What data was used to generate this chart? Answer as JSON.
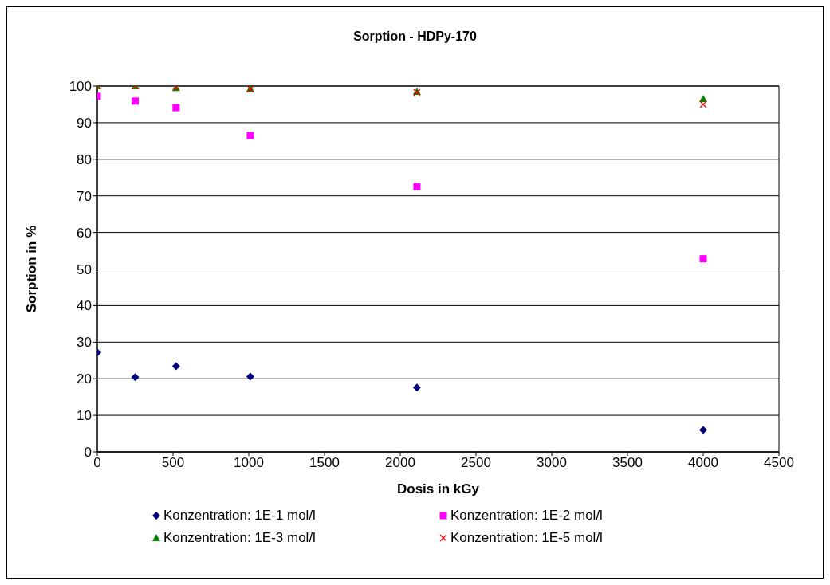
{
  "chart_data": {
    "type": "scatter",
    "title": "Sorption - HDPy-170",
    "xlabel": "Dosis in kGy",
    "ylabel": "Sorption in %",
    "x": [
      0,
      250,
      520,
      1010,
      2110,
      4000
    ],
    "series": [
      {
        "name": "Konzentration: 1E-1 mol/l",
        "color": "#000080",
        "marker": "diamond",
        "values": [
          27.2,
          20.4,
          23.4,
          20.6,
          17.6,
          6
        ]
      },
      {
        "name": "Konzentration: 1E-2 mol/l",
        "color": "#ff00ff",
        "marker": "square",
        "values": [
          97.2,
          95.9,
          94.1,
          86.5,
          72.5,
          52.8
        ]
      },
      {
        "name": "Konzentration: 1E-3 mol/l",
        "color": "#008000",
        "marker": "triangle",
        "values": [
          100,
          100,
          99.5,
          99.3,
          98.5,
          96.5
        ]
      },
      {
        "name": "Konzentration: 1E-5 mol/l",
        "color": "#ff0000",
        "marker": "cross",
        "values": [
          100,
          100,
          99.7,
          99.2,
          98.2,
          95
        ]
      }
    ],
    "xlim": [
      0,
      4500
    ],
    "xticks": [
      0,
      500,
      1000,
      1500,
      2000,
      2500,
      3000,
      3500,
      4000,
      4500
    ],
    "ylim": [
      0,
      100
    ],
    "yticks": [
      0,
      10,
      20,
      30,
      40,
      50,
      60,
      70,
      80,
      90,
      100
    ],
    "grid": "y",
    "legend": "bottom"
  }
}
